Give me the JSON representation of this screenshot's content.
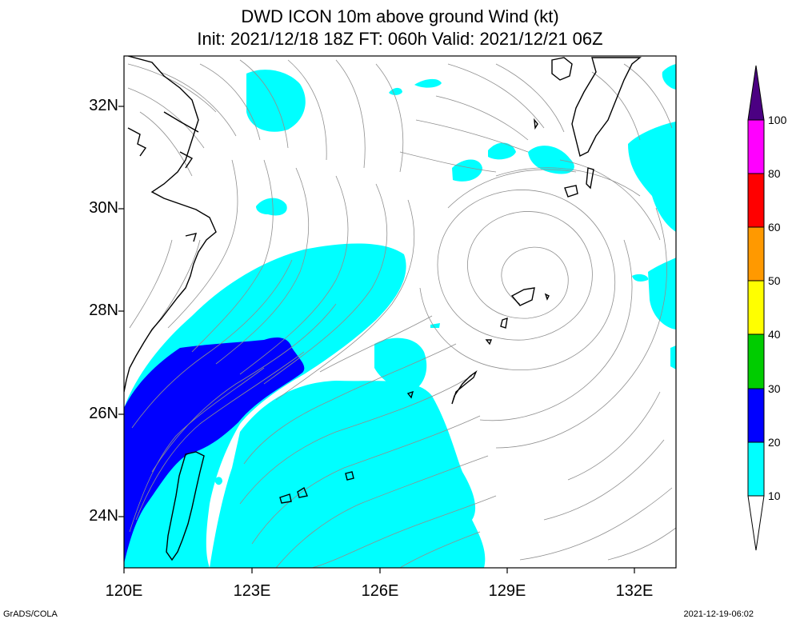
{
  "title": {
    "line1": "DWD ICON 10m above ground Wind (kt)",
    "line2": "Init: 2021/12/18 18Z  FT: 060h  Valid: 2021/12/21 06Z"
  },
  "axes": {
    "lat_labels": [
      "32N",
      "30N",
      "28N",
      "26N",
      "24N"
    ],
    "lon_labels": [
      "120E",
      "123E",
      "126E",
      "129E",
      "132E"
    ]
  },
  "colorbar": {
    "labels": [
      "100",
      "80",
      "60",
      "50",
      "40",
      "30",
      "20",
      "10"
    ],
    "colors": {
      "10-20": "#00ffff",
      "20-30": "#0000ff",
      "30-40": "#00cc00",
      "40-50": "#ffff00",
      "50-60": "#ff9900",
      "60-80": "#ff0000",
      "80-100": "#ff00ff",
      "100+": "#4b0082"
    }
  },
  "footer": {
    "left": "GrADS/COLA",
    "right": "2021-12-19-06:02"
  }
}
